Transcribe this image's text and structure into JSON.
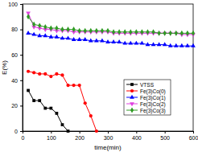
{
  "chart_data": {
    "type": "line",
    "x_label": "time(min)",
    "y_label": "E(%)",
    "x": [
      20,
      40,
      60,
      80,
      100,
      120,
      140,
      160,
      180,
      200,
      220,
      240,
      260,
      280,
      300,
      320,
      340,
      360,
      380,
      400,
      420,
      440,
      460,
      480,
      500,
      520,
      540,
      560,
      580,
      600
    ],
    "xlim": [
      0,
      600
    ],
    "xticks": [
      0,
      100,
      200,
      300,
      400,
      500,
      600
    ],
    "ylim": [
      0,
      100
    ],
    "yticks": [
      0,
      20,
      40,
      60,
      80,
      100
    ],
    "grid": false,
    "legend": "lower right",
    "series": [
      {
        "name": "VTSS",
        "color": "#000000",
        "marker": "square",
        "values": [
          32,
          24,
          24,
          18,
          18,
          14,
          5,
          0,
          null,
          null,
          null,
          null,
          null,
          null,
          null,
          null,
          null,
          null,
          null,
          null,
          null,
          null,
          null,
          null,
          null,
          null,
          null,
          null,
          null,
          null
        ]
      },
      {
        "name": "Fe(3)Co(0)",
        "color": "#ff0000",
        "marker": "circle",
        "values": [
          47,
          46,
          45,
          45,
          43,
          45,
          44,
          36,
          36,
          36,
          22,
          12,
          0,
          null,
          null,
          null,
          null,
          null,
          null,
          null,
          null,
          null,
          null,
          null,
          null,
          null,
          null,
          null,
          null,
          null
        ]
      },
      {
        "name": "Fe(3)Co(1)",
        "color": "#0000ff",
        "marker": "triangle-up",
        "values": [
          77,
          76,
          75,
          75,
          74,
          74,
          73,
          73,
          72,
          72,
          72,
          71,
          71,
          71,
          70,
          70,
          70,
          69,
          69,
          69,
          69,
          68,
          68,
          68,
          68,
          67,
          67,
          67,
          67,
          67
        ]
      },
      {
        "name": "Fe(3)Co(2)",
        "color": "#e040e0",
        "marker": "triangle-down",
        "values": [
          93,
          82,
          81,
          80,
          80,
          79,
          79,
          79,
          78,
          78,
          78,
          78,
          78,
          78,
          78,
          77,
          77,
          77,
          77,
          77,
          77,
          77,
          77,
          77,
          77,
          77,
          77,
          76,
          76,
          76
        ]
      },
      {
        "name": "Fe(3)Co(3)",
        "color": "#2e9a22",
        "marker": "diamond",
        "values": [
          90,
          84,
          83,
          82,
          81,
          81,
          80,
          80,
          80,
          79,
          79,
          79,
          79,
          79,
          79,
          78,
          78,
          78,
          78,
          78,
          78,
          78,
          78,
          77,
          77,
          77,
          77,
          77,
          77,
          77
        ]
      }
    ]
  }
}
